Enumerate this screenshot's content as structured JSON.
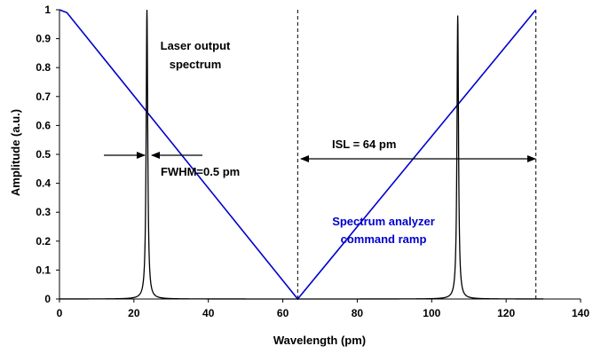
{
  "chart_data": {
    "type": "line",
    "xlabel": "Wavelength (pm)",
    "ylabel": "Amplitude (a.u.)",
    "xlim": [
      0,
      140
    ],
    "ylim": [
      0,
      1
    ],
    "x_ticks": [
      "0",
      "20",
      "40",
      "60",
      "80",
      "100",
      "120",
      "140"
    ],
    "y_ticks": [
      "0",
      "0.1",
      "0.2",
      "0.3",
      "0.4",
      "0.5",
      "0.6",
      "0.7",
      "0.8",
      "0.9",
      "1"
    ],
    "grid": false,
    "series": [
      {
        "color": "#0000cc",
        "x": [
          0,
          2,
          64,
          128
        ],
        "y": [
          1.0,
          0.99,
          0.0,
          1.0
        ]
      },
      {
        "color": "#000000",
        "peaks": [
          {
            "center": 23.5,
            "height": 1.0,
            "fwhm": 0.5
          },
          {
            "center": 107,
            "height": 0.98,
            "fwhm": 0.5
          }
        ]
      }
    ],
    "vertical_lines": [
      64,
      128
    ],
    "annotations": {
      "laser_line1": "Laser output",
      "laser_line2": "spectrum",
      "fwhm": "FWHM=0.5 pm",
      "isl": "ISL = 64 pm",
      "analyzer_line1": "Spectrum analyzer",
      "analyzer_line2": "command ramp"
    },
    "annotation_colors": {
      "laser": "#000000",
      "analyzer": "#0000cc"
    }
  }
}
